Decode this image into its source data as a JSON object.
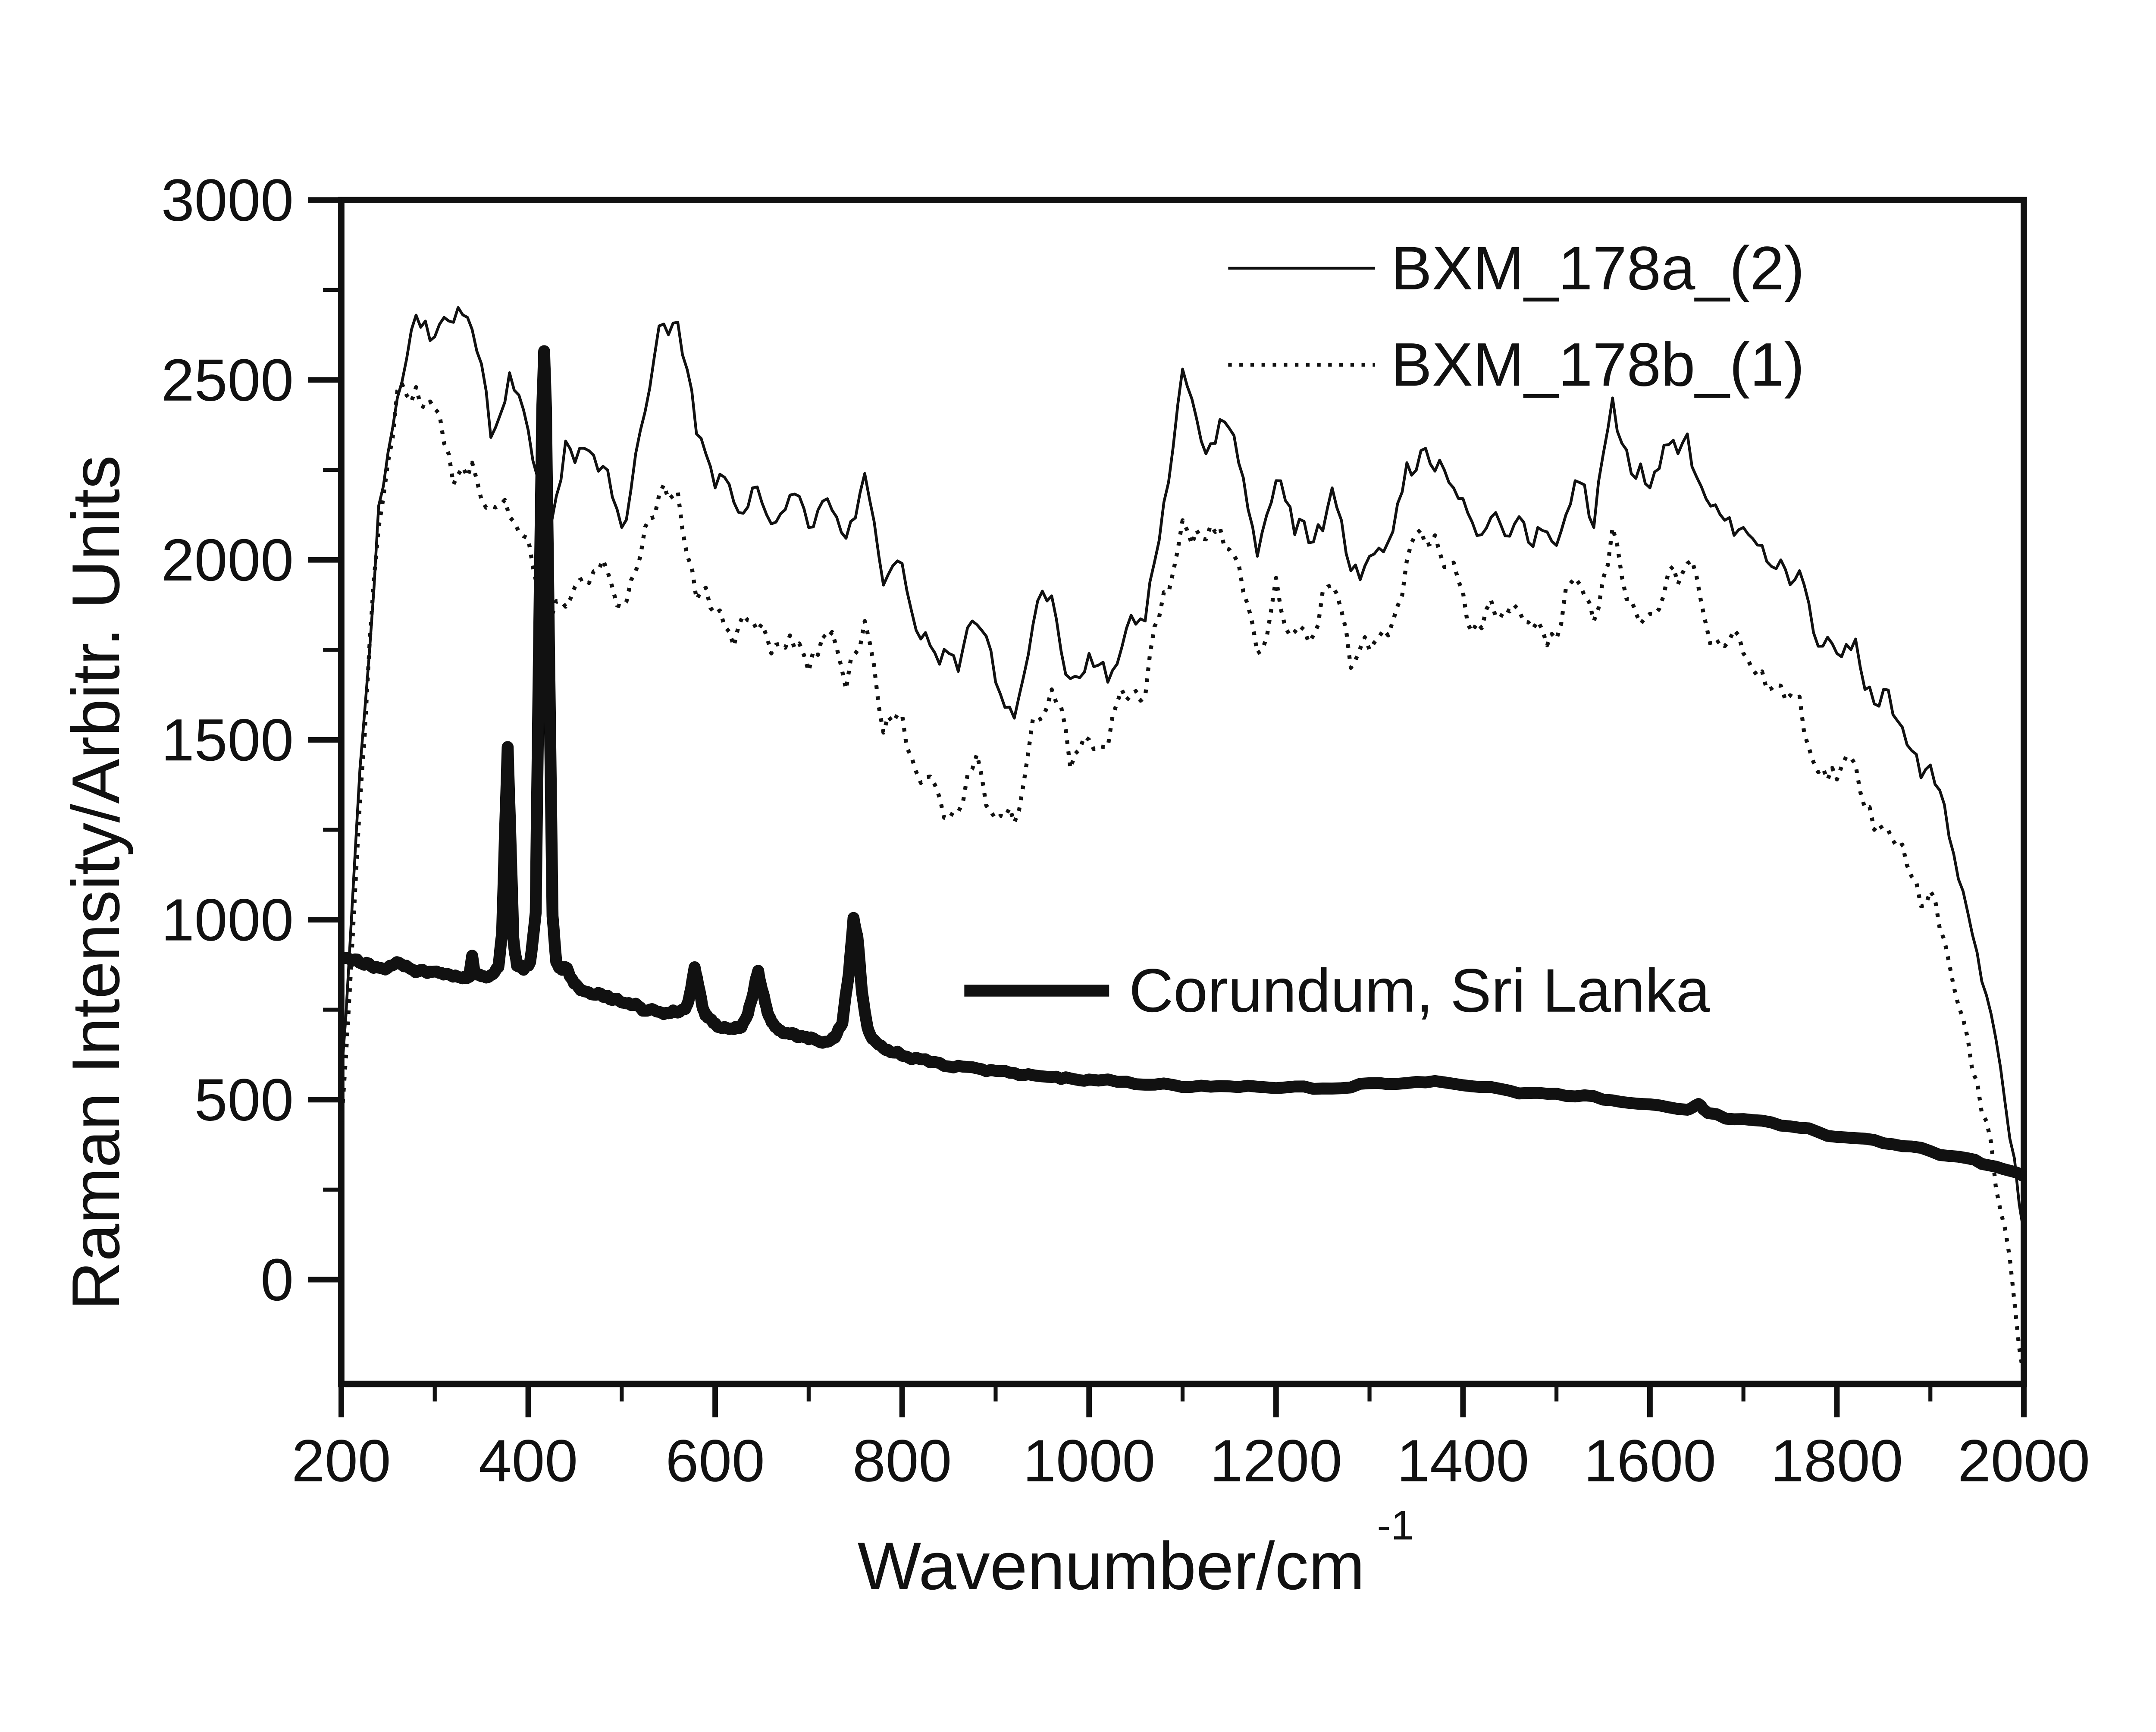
{
  "figure": {
    "background": "#ffffff",
    "ink": "#111111"
  },
  "y_axis": {
    "title": "Raman Intensity/Arbitr. Units",
    "major_ticks": [
      0,
      500,
      1000,
      1500,
      2000,
      2500,
      3000
    ],
    "minor_ticks": [
      250,
      750,
      1250,
      1750,
      2250,
      2750
    ]
  },
  "x_axis": {
    "title_main": "Wavenumber/cm",
    "title_superscript": "-1",
    "major_ticks": [
      200,
      400,
      600,
      800,
      1000,
      1200,
      1400,
      1600,
      1800,
      2000
    ],
    "minor_ticks": [
      300,
      500,
      700,
      900,
      1100,
      1300,
      1500,
      1700,
      1900
    ]
  },
  "chart_data": {
    "type": "line",
    "title": "",
    "xlabel": "Wavenumber/cm-1",
    "ylabel": "Raman Intensity/Arbitr. Units",
    "xlim": [
      200,
      2000
    ],
    "ylim": [
      -290,
      3000
    ],
    "grid": false,
    "legend_position": "upper-right-inside",
    "series": [
      {
        "name": "BXM_178a_(2)",
        "line": "solid",
        "x_start": 200,
        "x_step": 20,
        "values": [
          560,
          1420,
          2150,
          2450,
          2680,
          2620,
          2660,
          2640,
          2340,
          2520,
          2360,
          2080,
          2330,
          2310,
          2260,
          2090,
          2360,
          2650,
          2660,
          2350,
          2200,
          2160,
          2200,
          2100,
          2180,
          2090,
          2170,
          2060,
          2240,
          1930,
          1990,
          1780,
          1710,
          1690,
          1820,
          1660,
          1560,
          1820,
          1900,
          1670,
          1740,
          1660,
          1810,
          1830,
          2160,
          2530,
          2330,
          2390,
          2270,
          2010,
          2220,
          2070,
          2050,
          2200,
          1970,
          2010,
          2050,
          2270,
          2310,
          2250,
          2170,
          2070,
          2100,
          2120,
          2090,
          2040,
          2220,
          2090,
          2450,
          2240,
          2200,
          2320,
          2350,
          2170,
          2110,
          2090,
          2040,
          2000,
          1970,
          1760,
          1740,
          1780,
          1600,
          1570,
          1470,
          1430,
          1230,
          1020,
          790,
          490,
          130
        ]
      },
      {
        "name": "BXM_178b_(1)",
        "line": "dotted",
        "x_start": 200,
        "x_step": 20,
        "values": [
          430,
          1330,
          2090,
          2470,
          2480,
          2420,
          2210,
          2270,
          2150,
          2120,
          2060,
          1830,
          1870,
          1950,
          2000,
          1870,
          2010,
          2180,
          2190,
          1890,
          1850,
          1760,
          1830,
          1740,
          1790,
          1690,
          1780,
          1640,
          1830,
          1520,
          1570,
          1380,
          1340,
          1300,
          1460,
          1280,
          1270,
          1560,
          1640,
          1420,
          1500,
          1480,
          1610,
          1620,
          1910,
          2110,
          2060,
          2090,
          1990,
          1740,
          1950,
          1800,
          1790,
          1930,
          1700,
          1750,
          1790,
          2000,
          2040,
          1980,
          1910,
          1810,
          1840,
          1860,
          1830,
          1780,
          1950,
          1830,
          2090,
          1890,
          1850,
          1970,
          1990,
          1820,
          1760,
          1740,
          1690,
          1650,
          1620,
          1410,
          1390,
          1430,
          1250,
          1220,
          1120,
          1080,
          880,
          670,
          440,
          140,
          -270
        ]
      },
      {
        "name": "Corundum, Sri Lanka",
        "line": "thick",
        "points": [
          [
            200,
            893
          ],
          [
            212,
            886
          ],
          [
            222,
            878
          ],
          [
            232,
            871
          ],
          [
            242,
            866
          ],
          [
            252,
            872
          ],
          [
            262,
            880
          ],
          [
            272,
            867
          ],
          [
            282,
            856
          ],
          [
            292,
            852
          ],
          [
            302,
            856
          ],
          [
            312,
            850
          ],
          [
            322,
            845
          ],
          [
            332,
            842
          ],
          [
            337,
            841
          ],
          [
            340,
            900
          ],
          [
            343,
            848
          ],
          [
            350,
            843
          ],
          [
            360,
            846
          ],
          [
            368,
            868
          ],
          [
            372,
            960
          ],
          [
            375,
            1230
          ],
          [
            378,
            1480
          ],
          [
            381,
            1220
          ],
          [
            384,
            950
          ],
          [
            388,
            872
          ],
          [
            395,
            861
          ],
          [
            402,
            882
          ],
          [
            408,
            1020
          ],
          [
            412,
            1850
          ],
          [
            415,
            2420
          ],
          [
            417,
            2580
          ],
          [
            419,
            2420
          ],
          [
            422,
            1800
          ],
          [
            426,
            1010
          ],
          [
            430,
            882
          ],
          [
            436,
            861
          ],
          [
            440,
            868
          ],
          [
            446,
            838
          ],
          [
            452,
            818
          ],
          [
            460,
            801
          ],
          [
            470,
            792
          ],
          [
            480,
            786
          ],
          [
            490,
            777
          ],
          [
            500,
            770
          ],
          [
            510,
            763
          ],
          [
            520,
            756
          ],
          [
            530,
            750
          ],
          [
            540,
            744
          ],
          [
            550,
            740
          ],
          [
            560,
            742
          ],
          [
            568,
            752
          ],
          [
            573,
            795
          ],
          [
            578,
            868
          ],
          [
            583,
            806
          ],
          [
            587,
            752
          ],
          [
            592,
            728
          ],
          [
            600,
            712
          ],
          [
            610,
            702
          ],
          [
            620,
            696
          ],
          [
            628,
            701
          ],
          [
            635,
            738
          ],
          [
            641,
            798
          ],
          [
            646,
            858
          ],
          [
            651,
            798
          ],
          [
            656,
            742
          ],
          [
            662,
            712
          ],
          [
            670,
            692
          ],
          [
            680,
            682
          ],
          [
            690,
            674
          ],
          [
            700,
            668
          ],
          [
            710,
            663
          ],
          [
            720,
            661
          ],
          [
            728,
            672
          ],
          [
            736,
            712
          ],
          [
            743,
            850
          ],
          [
            748,
            1005
          ],
          [
            752,
            955
          ],
          [
            757,
            800
          ],
          [
            763,
            700
          ],
          [
            770,
            666
          ],
          [
            780,
            643
          ],
          [
            790,
            631
          ],
          [
            800,
            622
          ],
          [
            820,
            612
          ],
          [
            840,
            602
          ],
          [
            860,
            594
          ],
          [
            880,
            587
          ],
          [
            900,
            580
          ],
          [
            920,
            574
          ],
          [
            940,
            568
          ],
          [
            960,
            563
          ],
          [
            980,
            559
          ],
          [
            1000,
            556
          ],
          [
            1040,
            550
          ],
          [
            1080,
            545
          ],
          [
            1120,
            539
          ],
          [
            1160,
            535
          ],
          [
            1200,
            532
          ],
          [
            1240,
            530
          ],
          [
            1280,
            534
          ],
          [
            1320,
            543
          ],
          [
            1360,
            548
          ],
          [
            1400,
            540
          ],
          [
            1440,
            530
          ],
          [
            1480,
            519
          ],
          [
            1520,
            509
          ],
          [
            1560,
            498
          ],
          [
            1600,
            487
          ],
          [
            1640,
            472
          ],
          [
            1652,
            488
          ],
          [
            1662,
            463
          ],
          [
            1700,
            446
          ],
          [
            1740,
            428
          ],
          [
            1780,
            410
          ],
          [
            1820,
            393
          ],
          [
            1860,
            376
          ],
          [
            1900,
            357
          ],
          [
            1940,
            337
          ],
          [
            1970,
            314
          ],
          [
            2000,
            287
          ]
        ]
      }
    ]
  }
}
